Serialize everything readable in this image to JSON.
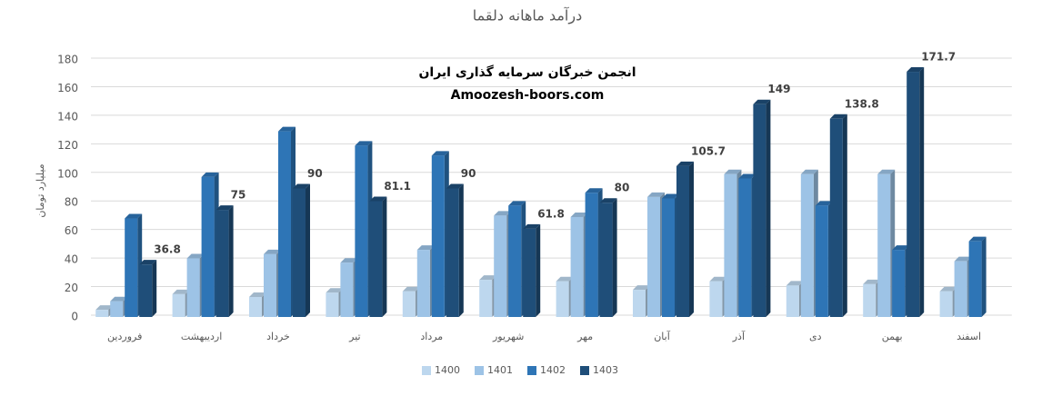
{
  "chart_data": {
    "type": "bar3d",
    "title": "درآمد ماهانه دلقما",
    "y_label": "میلیارد تومان",
    "annotations": [
      "انجمن خبرگان سرمایه گذاری ایران",
      "Amoozesh-boors.com"
    ],
    "categories": [
      "فروردین",
      "اردیبهشت",
      "خرداد",
      "تیر",
      "مرداد",
      "شهریور",
      "مهر",
      "آبان",
      "آذر",
      "دی",
      "بهمن",
      "اسفند"
    ],
    "series": [
      {
        "name": "1400",
        "color": "#bdd7ee",
        "values": [
          5,
          16,
          14,
          17,
          18,
          26,
          25,
          19,
          25,
          22,
          23,
          18
        ]
      },
      {
        "name": "1401",
        "color": "#9dc3e6",
        "values": [
          11,
          41,
          44,
          38,
          47,
          71,
          70,
          84,
          100,
          100,
          100,
          39
        ]
      },
      {
        "name": "1402",
        "color": "#2e75b6",
        "values": [
          69,
          98,
          130,
          120,
          113,
          78,
          87,
          83,
          97,
          78,
          47,
          53
        ]
      },
      {
        "name": "1403",
        "color": "#1f4e79",
        "values": [
          36.8,
          75,
          90,
          81.1,
          90,
          61.8,
          80,
          105.7,
          149,
          138.8,
          171.7,
          null
        ],
        "data_labels": true
      }
    ],
    "ylim": [
      0,
      180
    ],
    "yticks": [
      0,
      20,
      40,
      60,
      80,
      100,
      120,
      140,
      160,
      180
    ],
    "grid": true,
    "legend": "bottom"
  }
}
